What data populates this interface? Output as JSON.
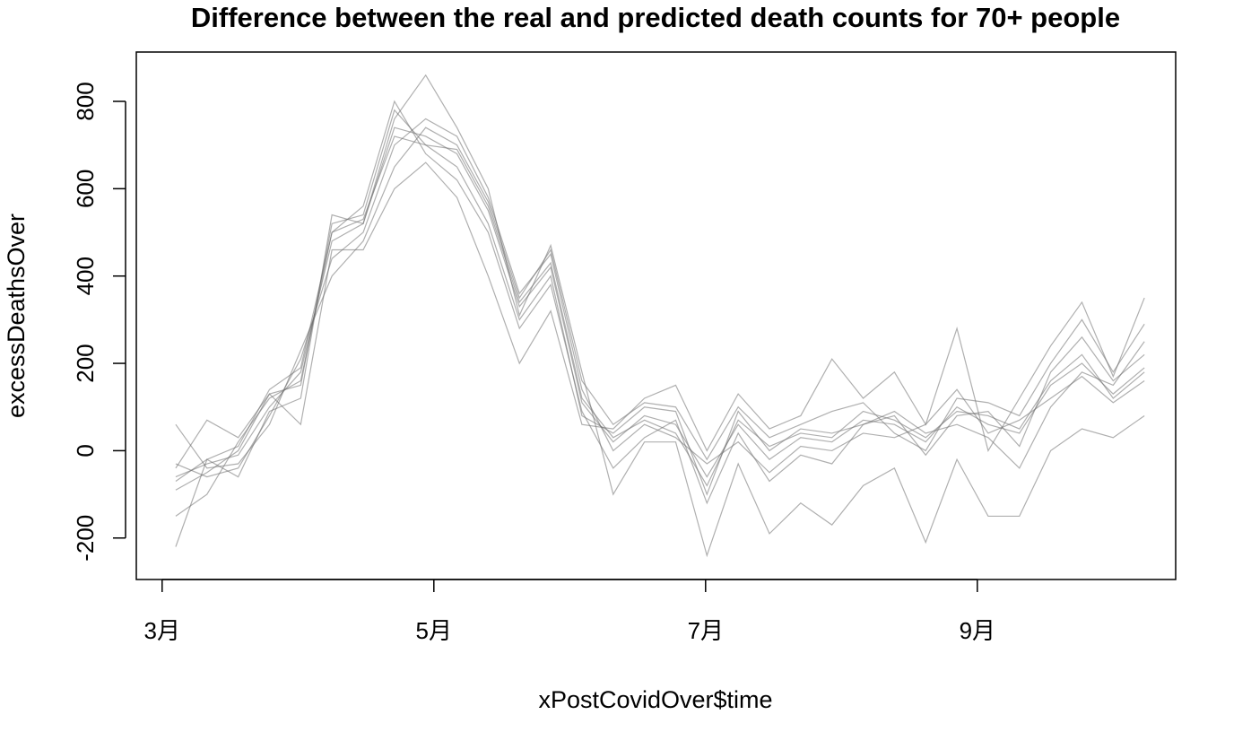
{
  "chart_data": {
    "type": "line",
    "title": "Difference between the real and predicted death counts for 70+ people",
    "x_label": "xPostCovidOver$time",
    "y_label": "excessDeathsOver",
    "x": [
      3.1,
      3.33,
      3.56,
      3.79,
      4.02,
      4.25,
      4.48,
      4.71,
      4.94,
      5.17,
      5.4,
      5.63,
      5.86,
      6.09,
      6.32,
      6.55,
      6.78,
      7.01,
      7.24,
      7.47,
      7.7,
      7.93,
      8.16,
      8.39,
      8.62,
      8.85,
      9.08,
      9.31,
      9.54,
      9.77,
      10.0,
      10.23
    ],
    "color": "#6e6e6e",
    "series": [
      {
        "values": [
          -60,
          -30,
          -10,
          100,
          180,
          480,
          520,
          740,
          720,
          680,
          550,
          330,
          420,
          110,
          20,
          80,
          60,
          -60,
          60,
          -20,
          30,
          20,
          70,
          60,
          20,
          100,
          60,
          40,
          150,
          200,
          130,
          190
        ]
      },
      {
        "values": [
          -90,
          -50,
          0,
          130,
          150,
          520,
          540,
          780,
          700,
          650,
          520,
          300,
          400,
          80,
          40,
          100,
          90,
          -100,
          90,
          0,
          50,
          40,
          60,
          80,
          -10,
          80,
          90,
          10,
          180,
          260,
          160,
          220
        ]
      },
      {
        "values": [
          -30,
          -60,
          -40,
          80,
          210,
          440,
          500,
          700,
          760,
          720,
          580,
          360,
          450,
          140,
          0,
          60,
          30,
          -30,
          20,
          -50,
          10,
          0,
          40,
          30,
          60,
          140,
          40,
          70,
          120,
          170,
          110,
          160
        ]
      },
      {
        "values": [
          -150,
          -100,
          20,
          120,
          160,
          500,
          560,
          800,
          680,
          620,
          500,
          280,
          380,
          90,
          -40,
          30,
          70,
          -120,
          40,
          -70,
          -10,
          -30,
          60,
          90,
          40,
          60,
          30,
          -40,
          100,
          180,
          150,
          250
        ]
      },
      {
        "values": [
          60,
          -40,
          -30,
          60,
          230,
          400,
          480,
          650,
          740,
          700,
          570,
          350,
          460,
          160,
          60,
          110,
          100,
          -20,
          100,
          30,
          60,
          90,
          110,
          40,
          0,
          120,
          110,
          80,
          200,
          300,
          180,
          290
        ]
      },
      {
        "values": [
          -220,
          -20,
          -60,
          90,
          120,
          540,
          520,
          760,
          860,
          740,
          600,
          310,
          470,
          180,
          -100,
          20,
          20,
          -240,
          -30,
          -190,
          -120,
          -170,
          -80,
          -40,
          -210,
          -20,
          -150,
          -150,
          0,
          50,
          30,
          80
        ]
      },
      {
        "values": [
          -40,
          70,
          30,
          130,
          60,
          460,
          460,
          600,
          660,
          580,
          400,
          200,
          320,
          60,
          50,
          120,
          150,
          0,
          130,
          50,
          80,
          210,
          120,
          180,
          60,
          280,
          0,
          120,
          240,
          340,
          170,
          350
        ]
      },
      {
        "values": [
          -70,
          -20,
          10,
          140,
          190,
          500,
          530,
          720,
          700,
          690,
          560,
          340,
          430,
          120,
          30,
          70,
          40,
          -80,
          70,
          10,
          40,
          30,
          90,
          70,
          30,
          90,
          80,
          50,
          160,
          220,
          120,
          180
        ]
      }
    ],
    "xlim": [
      2.81,
      10.46
    ],
    "xticks": [
      {
        "value": 3,
        "label": "3月"
      },
      {
        "value": 5,
        "label": "5月"
      },
      {
        "value": 7,
        "label": "7月"
      },
      {
        "value": 9,
        "label": "9月"
      }
    ],
    "ylim": [
      -295,
      913
    ],
    "yticks": [
      -200,
      0,
      200,
      400,
      600,
      800
    ],
    "grid": false
  }
}
